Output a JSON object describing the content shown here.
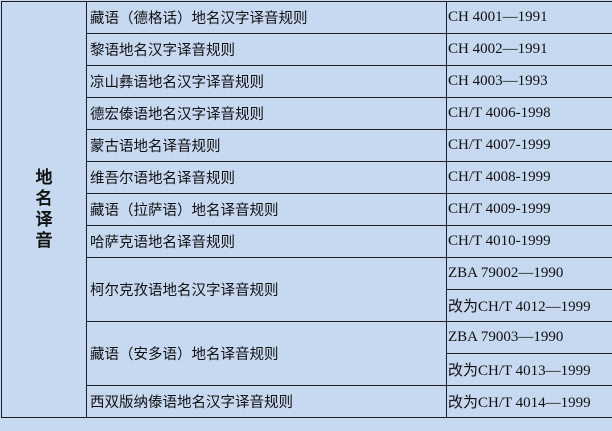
{
  "category": "地名译音",
  "rows": [
    {
      "name": "藏语（德格话）地名汉字译音规则",
      "codes": [
        "CH 4001—1991"
      ]
    },
    {
      "name": "黎语地名汉字译音规则",
      "codes": [
        "CH 4002—1991"
      ]
    },
    {
      "name": "凉山彝语地名汉字译音规则",
      "codes": [
        "CH 4003—1993"
      ]
    },
    {
      "name": "德宏傣语地名汉字译音规则",
      "codes": [
        "CH/T 4006-1998"
      ]
    },
    {
      "name": "蒙古语地名译音规则",
      "codes": [
        "CH/T 4007-1999"
      ]
    },
    {
      "name": "维吾尔语地名译音规则",
      "codes": [
        "CH/T 4008-1999"
      ]
    },
    {
      "name": "藏语（拉萨语）地名译音规则",
      "codes": [
        "CH/T 4009-1999"
      ]
    },
    {
      "name": "哈萨克语地名译音规则",
      "codes": [
        "CH/T 4010-1999"
      ]
    },
    {
      "name": "柯尔克孜语地名汉字译音规则",
      "codes": [
        "ZBA 79002—1990",
        "改为CH/T 4012—1999"
      ]
    },
    {
      "name": "藏语（安多语）地名译音规则",
      "codes": [
        "ZBA 79003—1990",
        "改为CH/T 4013—1999"
      ]
    },
    {
      "name": "西双版纳傣语地名汉字译音规则",
      "codes": [
        "改为CH/T 4014—1999"
      ]
    }
  ]
}
